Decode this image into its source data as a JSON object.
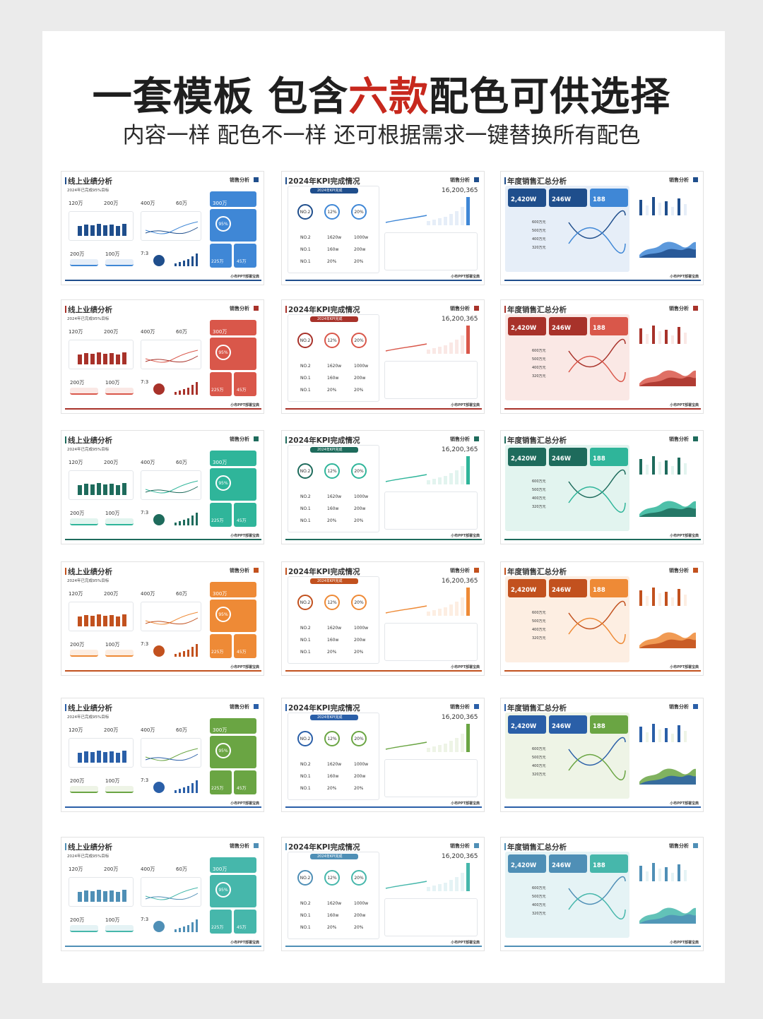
{
  "header": {
    "title_part1": "一套模板 包含",
    "title_accent": "六款",
    "title_part2": "配色可供选择",
    "subtitle": "内容一样 配色不一样 还可根据需求一键替换所有配色"
  },
  "slides_text": {
    "t1": "线上业绩分析",
    "t2": "2024年KPI完成情况",
    "t3": "年度销售汇总分析",
    "tag": "销售分析",
    "footer": "小布PPT部署宝典",
    "s1_sub": "2024年已完成95%目标",
    "s1_vals": [
      "120万",
      "200万",
      "400万",
      "60万",
      "300万",
      "200万",
      "100万",
      "7:3",
      "225万",
      "45万",
      "95%"
    ],
    "s2_head": "2024年KPI完成",
    "s2_big": "16,200,365",
    "s2_circles": [
      "NO.2",
      "12%",
      "20%"
    ],
    "s2_rows": [
      [
        "NO.2",
        "1620w",
        "1000w"
      ],
      [
        "NO.1",
        "160w",
        "200w"
      ],
      [
        "NO.1",
        "20%",
        "20%"
      ]
    ],
    "s3_kpis": [
      "2,420W",
      "246W",
      "188"
    ],
    "s3_list": [
      "600万元",
      "500万元",
      "400万元",
      "320万元"
    ]
  },
  "themes": [
    {
      "name": "blue-navy",
      "primary": "#1f4e8c",
      "light": "#3f87d6",
      "tint": "#e6eef8",
      "accent2": "#3f87d6"
    },
    {
      "name": "red",
      "primary": "#a8322a",
      "light": "#d9574a",
      "tint": "#fae8e5",
      "accent2": "#d9574a"
    },
    {
      "name": "teal-green",
      "primary": "#1e6b5c",
      "light": "#2fb59a",
      "tint": "#e2f4ef",
      "accent2": "#2fb59a"
    },
    {
      "name": "orange",
      "primary": "#c2511e",
      "light": "#ee8a36",
      "tint": "#fdeee2",
      "accent2": "#ee8a36"
    },
    {
      "name": "blue-green",
      "primary": "#2a5fa8",
      "light": "#6aa543",
      "tint": "#eef4e6",
      "accent2": "#6aa543"
    },
    {
      "name": "light-blue-teal",
      "primary": "#4f8fb6",
      "light": "#46b7ab",
      "tint": "#e5f3f5",
      "accent2": "#46b7ab"
    }
  ]
}
